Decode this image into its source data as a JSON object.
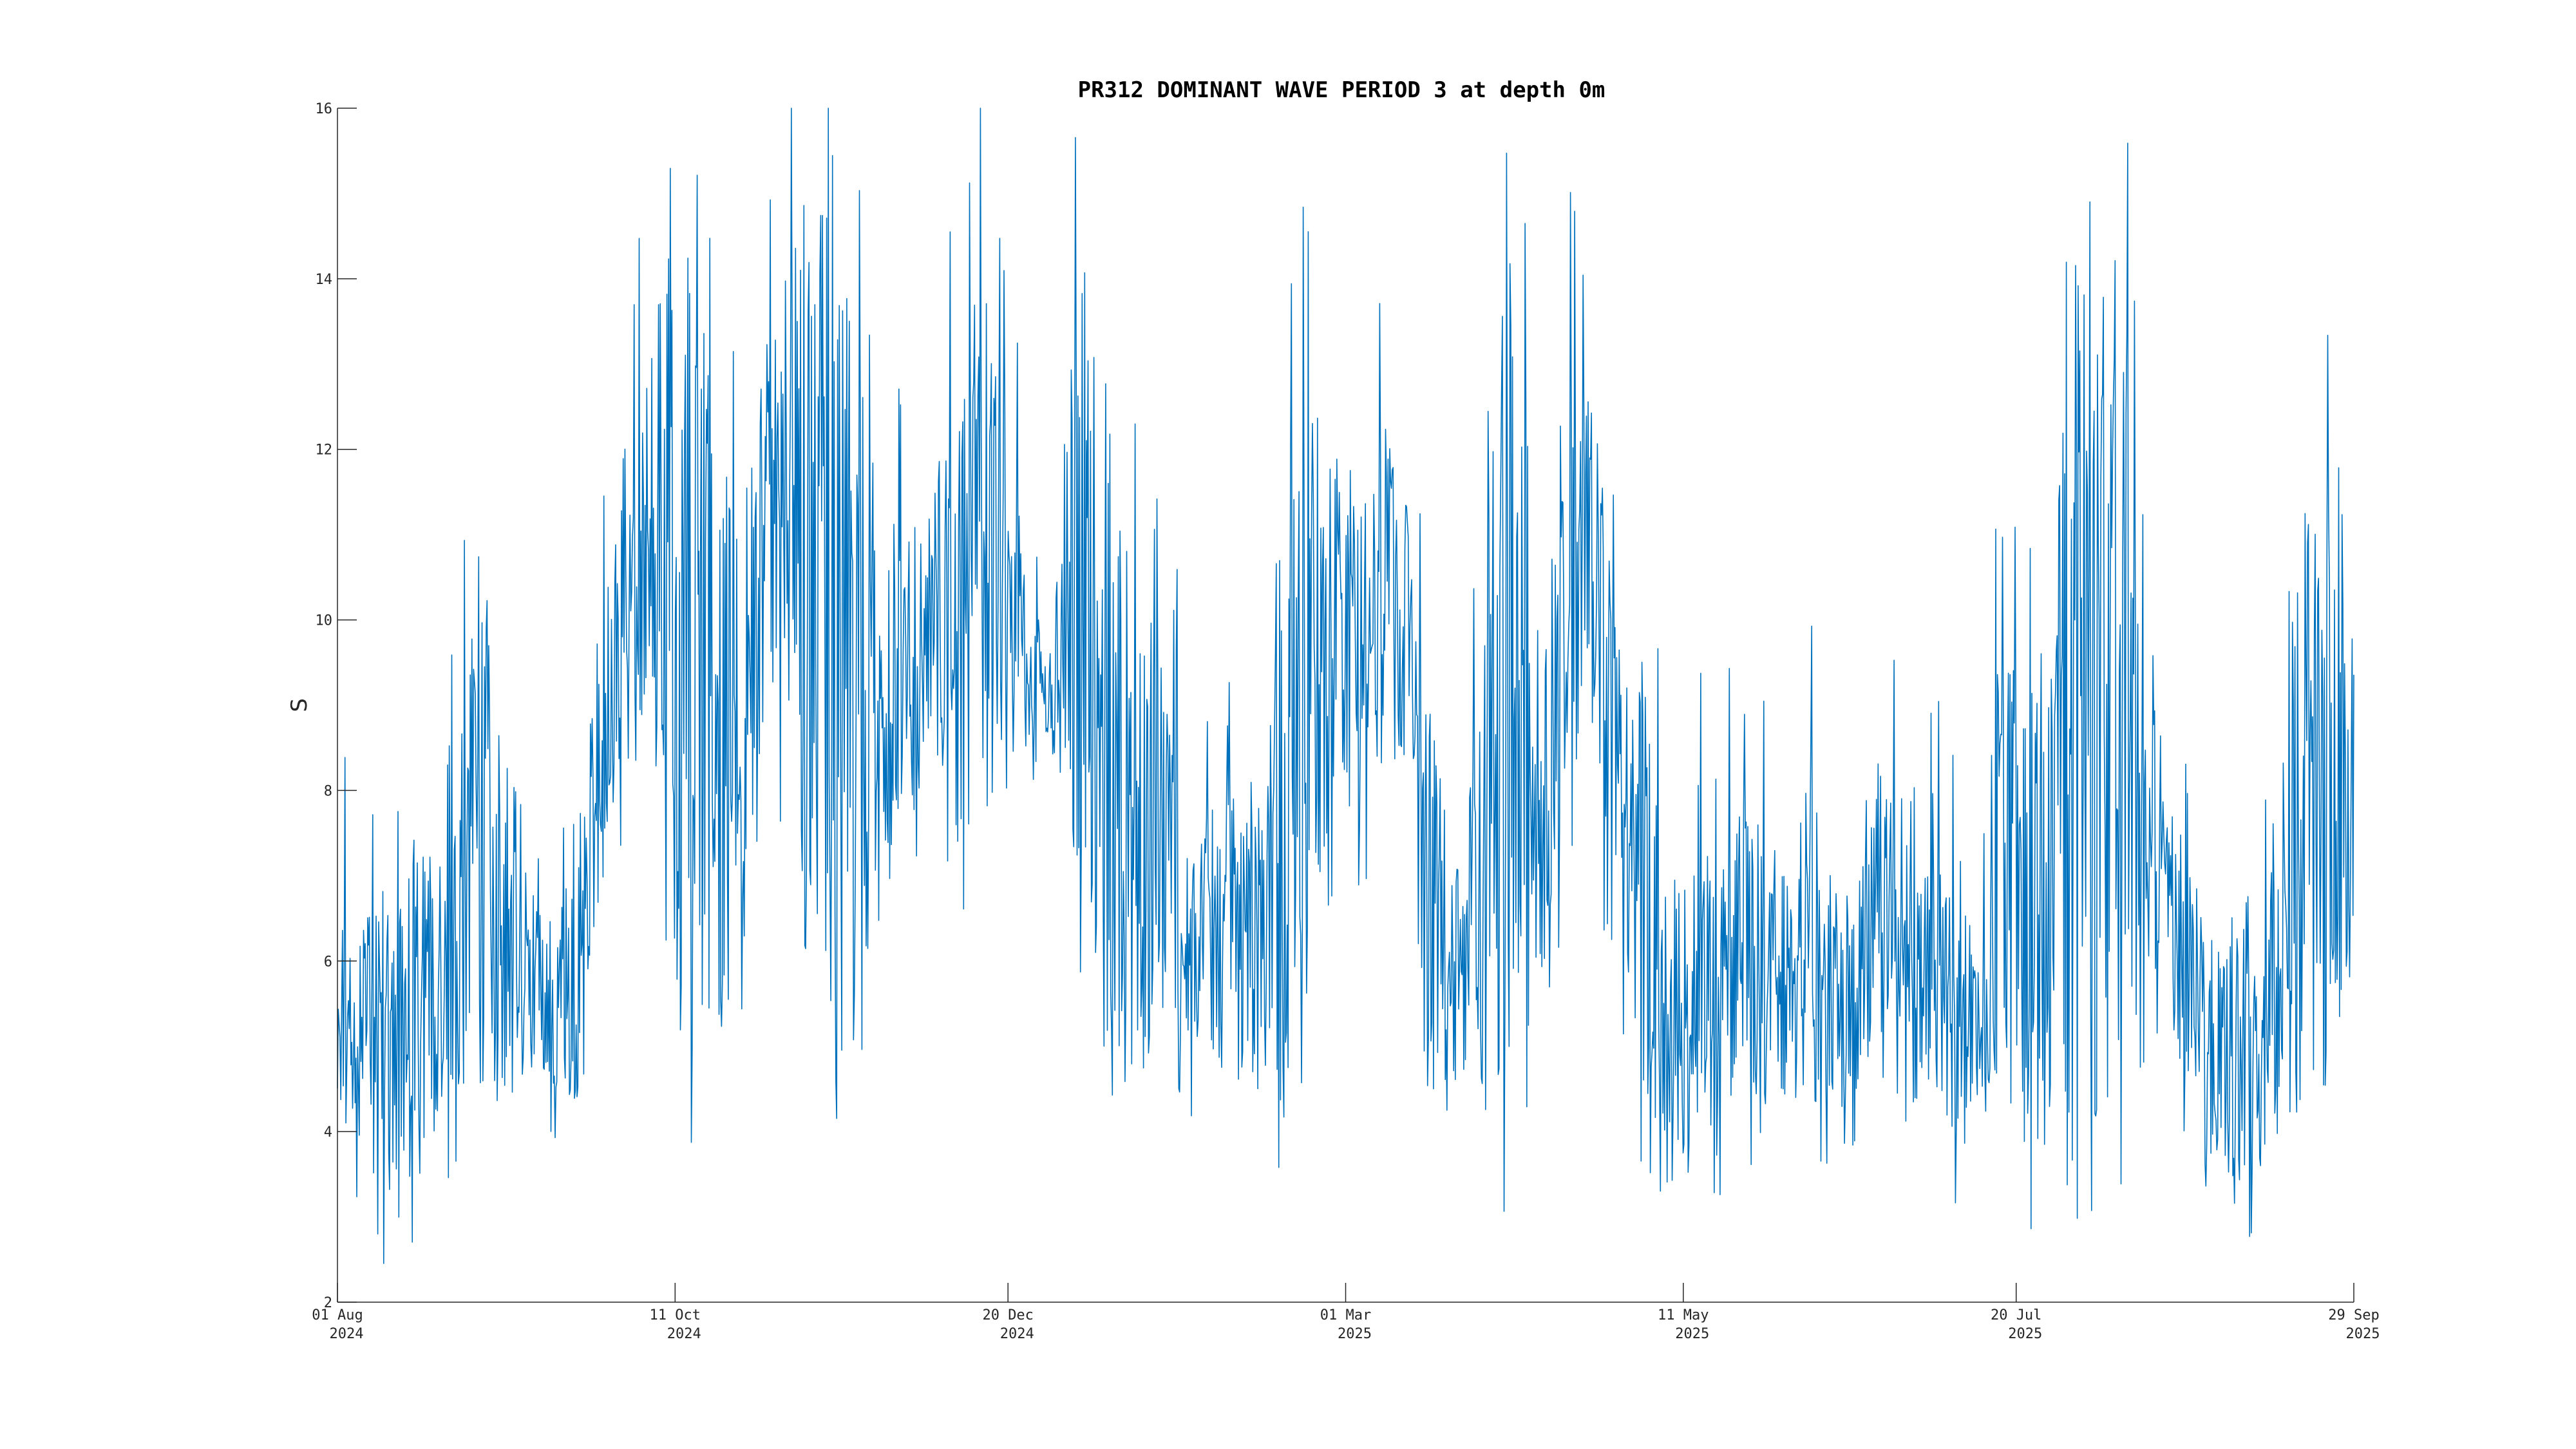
{
  "chart_data": {
    "type": "line",
    "title": "PR312 DOMINANT WAVE PERIOD 3 at depth 0m",
    "xlabel": "",
    "ylabel": "S",
    "ylim": [
      2,
      16
    ],
    "xlim": [
      "2024-08-01",
      "2025-09-29"
    ],
    "grid": false,
    "line_color": "#0072bd",
    "y_ticks": [
      {
        "value": 2,
        "label": "2"
      },
      {
        "value": 4,
        "label": "4"
      },
      {
        "value": 6,
        "label": "6"
      },
      {
        "value": 8,
        "label": "8"
      },
      {
        "value": 10,
        "label": "10"
      },
      {
        "value": 12,
        "label": "12"
      },
      {
        "value": 14,
        "label": "14"
      },
      {
        "value": 16,
        "label": "16"
      }
    ],
    "x_ticks": [
      {
        "date": "2024-08-01",
        "line1": "01 Aug",
        "line2": "2024"
      },
      {
        "date": "2024-10-11",
        "line1": "11 Oct",
        "line2": "2024"
      },
      {
        "date": "2024-12-20",
        "line1": "20 Dec",
        "line2": "2024"
      },
      {
        "date": "2025-03-01",
        "line1": "01 Mar",
        "line2": "2025"
      },
      {
        "date": "2025-05-11",
        "line1": "11 May",
        "line2": "2025"
      },
      {
        "date": "2025-07-20",
        "line1": "20 Jul",
        "line2": "2025"
      },
      {
        "date": "2025-09-29",
        "line1": "29 Sep",
        "line2": "2025"
      }
    ],
    "series": [
      {
        "x": [
          "2024-08-01",
          "2024-08-06",
          "2024-08-11",
          "2024-08-16",
          "2024-08-21",
          "2024-08-26",
          "2024-08-31",
          "2024-09-05",
          "2024-09-10",
          "2024-09-15",
          "2024-09-20",
          "2024-09-25",
          "2024-09-30",
          "2024-10-05",
          "2024-10-10",
          "2024-10-15",
          "2024-10-20",
          "2024-10-25",
          "2024-10-30",
          "2024-11-04",
          "2024-11-09",
          "2024-11-14",
          "2024-11-19",
          "2024-11-24",
          "2024-11-29",
          "2024-12-04",
          "2024-12-09",
          "2024-12-14",
          "2024-12-19",
          "2024-12-24",
          "2024-12-29",
          "2025-01-03",
          "2025-01-08",
          "2025-01-13",
          "2025-01-18",
          "2025-01-23",
          "2025-01-28",
          "2025-02-02",
          "2025-02-07",
          "2025-02-12",
          "2025-02-17",
          "2025-02-22",
          "2025-02-27",
          "2025-03-04",
          "2025-03-09",
          "2025-03-14",
          "2025-03-19",
          "2025-03-24",
          "2025-03-29",
          "2025-04-03",
          "2025-04-08",
          "2025-04-13",
          "2025-04-18",
          "2025-04-23",
          "2025-04-28",
          "2025-05-03",
          "2025-05-08",
          "2025-05-13",
          "2025-05-18",
          "2025-05-23",
          "2025-05-28",
          "2025-06-02",
          "2025-06-07",
          "2025-06-12",
          "2025-06-17",
          "2025-06-22",
          "2025-06-27",
          "2025-07-02",
          "2025-07-07",
          "2025-07-12",
          "2025-07-17",
          "2025-07-22",
          "2025-07-27",
          "2025-08-01",
          "2025-08-06",
          "2025-08-11",
          "2025-08-16",
          "2025-08-21",
          "2025-08-26",
          "2025-08-31",
          "2025-09-05",
          "2025-09-10",
          "2025-09-15",
          "2025-09-20",
          "2025-09-25",
          "2025-09-29"
        ],
        "lo": [
          4.2,
          3.7,
          3.3,
          3.4,
          3.5,
          4.4,
          4.5,
          4.2,
          4.6,
          4.5,
          4.1,
          6.8,
          8.1,
          9.0,
          6.5,
          4.5,
          4.6,
          6.2,
          9.1,
          8.2,
          6.0,
          4.5,
          4.4,
          7.2,
          7.5,
          8.6,
          7.2,
          7.4,
          8.1,
          8.5,
          8.7,
          7.1,
          5.6,
          4.6,
          4.6,
          4.9,
          5.0,
          4.8,
          4.4,
          4.4,
          3.9,
          6.7,
          6.3,
          7.5,
          8.3,
          8.2,
          4.3,
          4.6,
          5.1,
          3.9,
          3.9,
          6.4,
          6.9,
          7.5,
          5.5,
          4.3,
          3.9,
          3.4,
          4.1,
          4.5,
          4.1,
          4.3,
          4.1,
          4.4,
          4.3,
          4.4,
          3.9,
          4.6,
          3.9,
          4.3,
          4.3,
          3.5,
          4.3,
          3.7,
          3.8,
          3.6,
          4.6,
          5.9,
          3.3,
          3.2,
          3.4,
          3.6,
          4.1,
          4.4,
          4.3,
          6.1
        ],
        "hi": [
          6.4,
          6.5,
          6.9,
          7.4,
          7.2,
          8.4,
          11.0,
          8.4,
          7.9,
          6.5,
          7.2,
          10.1,
          12.1,
          12.9,
          14.6,
          14.8,
          12.2,
          11.1,
          13.2,
          14.4,
          15.2,
          14.8,
          12.8,
          11.3,
          11.2,
          11.6,
          12.7,
          14.4,
          12.9,
          10.4,
          9.6,
          14.5,
          13.8,
          11.3,
          9.9,
          9.1,
          7.3,
          8.0,
          8.4,
          8.1,
          13.5,
          12.9,
          12.5,
          11.5,
          12.4,
          11.4,
          8.8,
          7.3,
          8.5,
          14.9,
          12.7,
          10.1,
          13.4,
          12.1,
          9.4,
          9.1,
          6.8,
          7.5,
          7.1,
          7.9,
          7.7,
          6.9,
          7.8,
          6.8,
          7.0,
          8.5,
          6.9,
          7.1,
          6.9,
          6.3,
          9.8,
          9.8,
          11.2,
          13.9,
          13.3,
          14.5,
          11.6,
          8.0,
          7.0,
          6.3,
          6.8,
          6.7,
          9.0,
          12.1,
          11.4,
          11.4
        ]
      }
    ]
  }
}
